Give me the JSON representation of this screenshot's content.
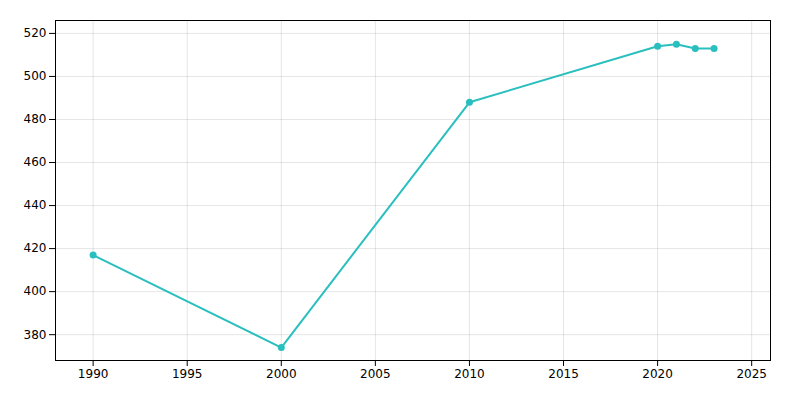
{
  "chart_data": {
    "type": "line",
    "x": [
      1990,
      2000,
      2010,
      2020,
      2021,
      2022,
      2023
    ],
    "values": [
      417,
      374,
      488,
      514,
      515,
      513,
      513
    ],
    "color": "#2abfbf",
    "marker": "circle",
    "xlim": [
      1988,
      2026
    ],
    "ylim": [
      368,
      526
    ],
    "xticks": [
      1990,
      1995,
      2000,
      2005,
      2010,
      2015,
      2020,
      2025
    ],
    "yticks": [
      380,
      400,
      420,
      440,
      460,
      480,
      500,
      520
    ],
    "grid": true
  }
}
